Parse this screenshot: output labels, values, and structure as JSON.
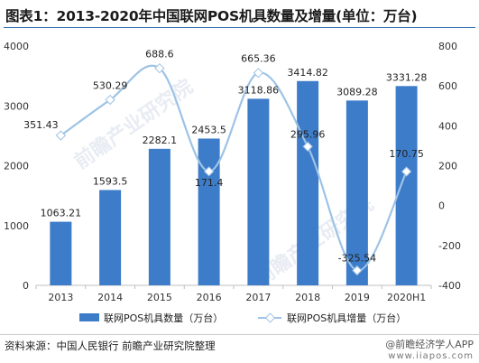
{
  "title": "图表1：2013-2020年中国联网POS机具数量及增量(单位：万台)",
  "source": "资料来源：中国人民银行 前瞻产业研究院整理",
  "brand": {
    "name": "@前瞻经济学人APP",
    "url": "www.iiapos.com"
  },
  "watermark": "前瞻产业研究院",
  "chart_data": {
    "type": "bar+line",
    "categories": [
      "2013",
      "2014",
      "2015",
      "2016",
      "2017",
      "2018",
      "2019",
      "2020H1"
    ],
    "series": [
      {
        "name": "联网POS机具数量（万台）",
        "type": "bar",
        "axis": "left",
        "color": "#3d7cc9",
        "values": [
          1063.21,
          1593.5,
          2282.1,
          2453.5,
          3118.86,
          3414.82,
          3089.28,
          3331.28
        ],
        "labels": [
          "1063.21",
          "1593.5",
          "2282.1",
          "2453.5",
          "3118.86",
          "3414.82",
          "3089.28",
          "3331.28"
        ]
      },
      {
        "name": "联网POS机具增量（万台）",
        "type": "line",
        "axis": "right",
        "color": "#9dc3e6",
        "values": [
          351.43,
          530.29,
          688.6,
          171.4,
          665.36,
          295.96,
          -325.54,
          170.75
        ],
        "labels": [
          "351.43",
          "530.29",
          "688.6",
          "171.4",
          "665.36",
          "295.96",
          "-325.54",
          "170.75"
        ]
      }
    ],
    "y_left": {
      "min": 0,
      "max": 4000,
      "ticks": [
        "0",
        "1000",
        "2000",
        "3000",
        "4000"
      ]
    },
    "y_right": {
      "min": -400,
      "max": 800,
      "ticks": [
        "-400",
        "-200",
        "0",
        "200",
        "400",
        "600",
        "800"
      ]
    },
    "legend_position": "bottom",
    "grid": false
  }
}
